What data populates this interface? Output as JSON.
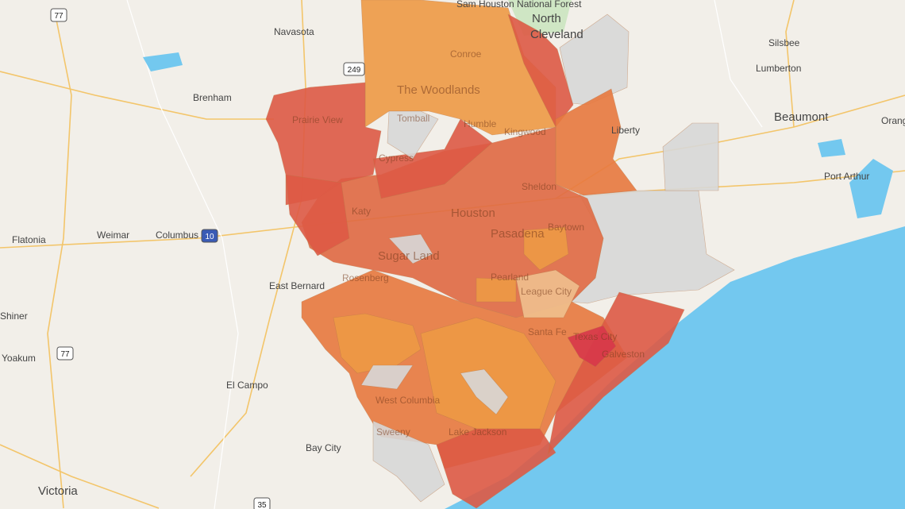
{
  "places": [
    "Sam Houston National Forest",
    "North",
    "Cleveland",
    "Navasota",
    "Silsbee",
    "Lumberton",
    "Brenham",
    "Prairie View",
    "The Woodlands",
    "Conroe",
    "Kingwood",
    "Liberty",
    "Beaumont",
    "Orange",
    "Port Arthur",
    "Tomball",
    "Humble",
    "Cypress",
    "Sheldon",
    "Katy",
    "Houston",
    "Baytown",
    "Pasadena",
    "Flatonia",
    "Weimar",
    "Columbus",
    "Sugar Land",
    "Rosenberg",
    "Pearland",
    "League City",
    "East Bernard",
    "Shiner",
    "Texas City",
    "Galveston",
    "Santa Fe",
    "Yoakum",
    "El Campo",
    "West Columbia",
    "Sweeny",
    "Lake Jackson",
    "Bay City",
    "Victoria"
  ],
  "highways": [
    "77",
    "249",
    "10",
    "77",
    "35"
  ]
}
